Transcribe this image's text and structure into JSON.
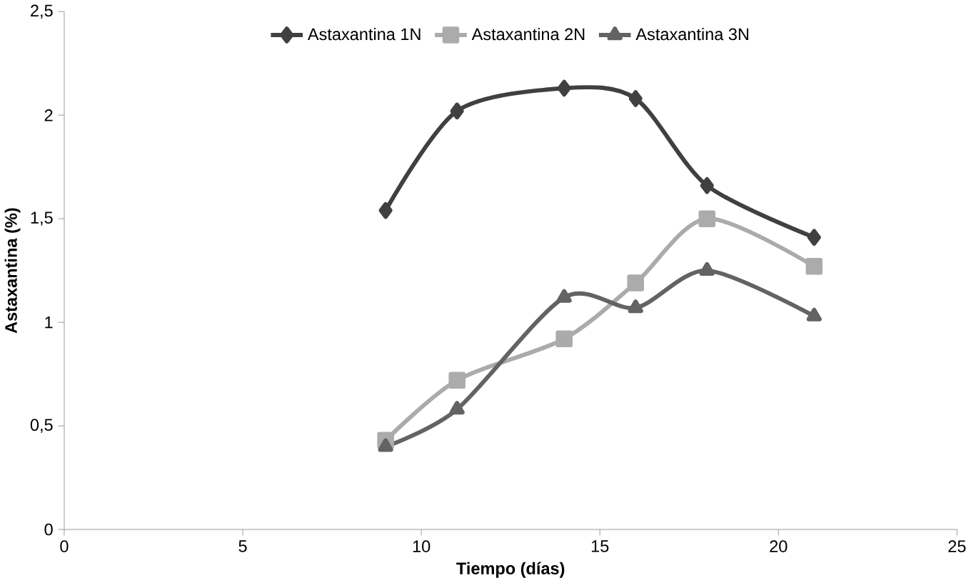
{
  "chart_data": {
    "type": "line",
    "xlabel": "Tiempo (días)",
    "ylabel": "Astaxantina (%)",
    "xlim": [
      0,
      25
    ],
    "xticks": [
      0,
      5,
      10,
      15,
      20,
      25
    ],
    "ylim": [
      0,
      2.5
    ],
    "yticks": [
      0,
      {
        "value": 0.5,
        "label": "0,5"
      },
      1,
      {
        "value": 1.5,
        "label": "1,5"
      },
      2,
      {
        "value": 2.5,
        "label": "2,5"
      }
    ],
    "x": [
      9,
      11,
      14,
      16,
      18,
      21
    ],
    "grid": false,
    "legend": "top",
    "line_style": "solid",
    "series": [
      {
        "name": "Astaxantina 1N",
        "color": "#404040",
        "marker": "diamond",
        "values": [
          1.54,
          2.02,
          2.13,
          2.08,
          1.66,
          1.41
        ]
      },
      {
        "name": "Astaxantina 2N",
        "color": "#ababab",
        "marker": "square",
        "values": [
          0.43,
          0.72,
          0.92,
          1.19,
          1.5,
          1.27
        ]
      },
      {
        "name": "Astaxantina 3N",
        "color": "#636363",
        "marker": "triangle",
        "values": [
          0.4,
          0.58,
          1.12,
          1.07,
          1.25,
          1.03
        ]
      }
    ]
  }
}
